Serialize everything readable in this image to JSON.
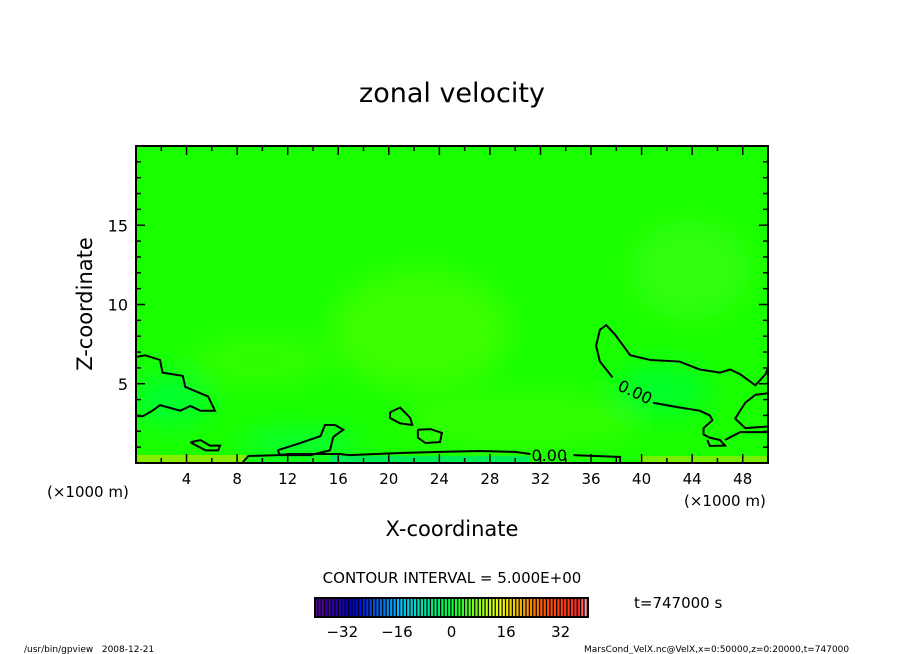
{
  "chart_data": {
    "type": "contour",
    "title": "zonal velocity",
    "xlabel": "X-coordinate",
    "ylabel": "Z-coordinate",
    "x_unit_label": "(×1000 m)",
    "xlim": [
      0,
      50
    ],
    "ylim": [
      0,
      20
    ],
    "x_ticks": [
      4,
      8,
      12,
      16,
      20,
      24,
      28,
      32,
      36,
      40,
      44,
      48
    ],
    "y_ticks": [
      5,
      10,
      15
    ],
    "contour_interval_text": "CONTOUR INTERVAL = 5.000E+00",
    "contour_labels": [
      {
        "text": "0.00",
        "x": 32.7,
        "z": 0.5,
        "angle": 0
      },
      {
        "text": "0.00",
        "x": 39.5,
        "z": 4.5,
        "angle": 25
      }
    ],
    "contours": [
      [
        [
          0.1,
          6.7
        ],
        [
          0.7,
          6.8
        ],
        [
          1.9,
          6.5
        ],
        [
          2.1,
          5.7
        ],
        [
          3.7,
          5.5
        ],
        [
          3.9,
          4.8
        ],
        [
          5.7,
          4.2
        ],
        [
          6.25,
          3.3
        ],
        [
          5.1,
          3.3
        ],
        [
          4.3,
          3.6
        ],
        [
          3.5,
          3.3
        ],
        [
          1.9,
          3.65
        ],
        [
          1.3,
          3.3
        ],
        [
          0.55,
          2.96
        ],
        [
          0.1,
          2.96
        ]
      ],
      [
        [
          4.3,
          1.3
        ],
        [
          5.1,
          1.45
        ],
        [
          5.85,
          1.1
        ],
        [
          6.65,
          1.1
        ],
        [
          6.5,
          0.8
        ],
        [
          5.5,
          0.8
        ],
        [
          4.3,
          1.3
        ]
      ],
      [
        [
          11.2,
          0.8
        ],
        [
          13.0,
          1.26
        ],
        [
          14.6,
          1.7
        ],
        [
          14.95,
          2.4
        ],
        [
          15.75,
          2.4
        ],
        [
          16.4,
          2.1
        ],
        [
          15.6,
          1.64
        ],
        [
          15.35,
          0.8
        ],
        [
          13.8,
          0.5
        ],
        [
          11.4,
          0.5
        ],
        [
          11.2,
          0.8
        ]
      ],
      [
        [
          20.1,
          3.2
        ],
        [
          20.9,
          3.5
        ],
        [
          21.7,
          2.84
        ],
        [
          21.85,
          2.4
        ],
        [
          20.9,
          2.5
        ],
        [
          20.1,
          2.84
        ],
        [
          20.1,
          3.2
        ]
      ],
      [
        [
          22.3,
          2.1
        ],
        [
          23.3,
          2.14
        ],
        [
          24.2,
          1.9
        ],
        [
          24.05,
          1.32
        ],
        [
          22.9,
          1.26
        ],
        [
          22.3,
          1.6
        ],
        [
          22.3,
          2.1
        ]
      ],
      [
        [
          8.45,
          0.05
        ],
        [
          8.9,
          0.44
        ],
        [
          11.2,
          0.5
        ],
        [
          12.1,
          0.57
        ],
        [
          16.1,
          0.57
        ],
        [
          16.9,
          0.5
        ],
        [
          20.9,
          0.63
        ],
        [
          24.05,
          0.7
        ],
        [
          27.2,
          0.76
        ],
        [
          30.0,
          0.7
        ],
        [
          31.2,
          0.57
        ]
      ],
      [
        [
          34.6,
          0.5
        ],
        [
          38.3,
          0.38
        ],
        [
          38.3,
          0.0
        ]
      ],
      [
        [
          37.7,
          5.4
        ],
        [
          36.7,
          6.4
        ],
        [
          36.4,
          7.4
        ],
        [
          36.7,
          8.4
        ],
        [
          37.2,
          8.7
        ],
        [
          37.9,
          8.1
        ],
        [
          39.1,
          6.8
        ],
        [
          40.7,
          6.5
        ],
        [
          43.0,
          6.4
        ],
        [
          44.6,
          5.9
        ],
        [
          46.2,
          5.7
        ],
        [
          47.0,
          5.9
        ],
        [
          47.8,
          5.6
        ],
        [
          49.0,
          4.9
        ],
        [
          49.8,
          5.6
        ],
        [
          50,
          6.0
        ]
      ],
      [
        [
          40.9,
          3.8
        ],
        [
          43.0,
          3.5
        ],
        [
          44.6,
          3.3
        ],
        [
          45.4,
          3.0
        ],
        [
          45.6,
          2.7
        ],
        [
          44.9,
          2.2
        ],
        [
          44.9,
          1.8
        ],
        [
          45.4,
          1.6
        ],
        [
          46.2,
          1.45
        ],
        [
          46.6,
          1.1
        ],
        [
          45.4,
          1.07
        ],
        [
          45.2,
          1.45
        ]
      ],
      [
        [
          50,
          4.4
        ],
        [
          49.0,
          4.3
        ],
        [
          48.2,
          3.8
        ],
        [
          47.4,
          2.8
        ],
        [
          48.2,
          2.2
        ],
        [
          50,
          2.3
        ]
      ],
      [
        [
          50,
          1.95
        ],
        [
          47.8,
          1.95
        ],
        [
          46.6,
          1.45
        ]
      ]
    ],
    "colorbar": {
      "range": [
        -40,
        40
      ],
      "tick_labels": [
        "-32",
        "-16",
        "0",
        "16",
        "32"
      ],
      "tick_values": [
        -32,
        -16,
        0,
        16,
        32
      ]
    },
    "colors": {
      "field_base": "#19ff00",
      "contour": "#000000"
    }
  },
  "annotations": {
    "time": "t=747000 s",
    "footer_left": "/usr/bin/gpview   2008-12-21",
    "footer_right": "MarsCond_VelX.nc@VelX,x=0:50000,z=0:20000,t=747000"
  }
}
